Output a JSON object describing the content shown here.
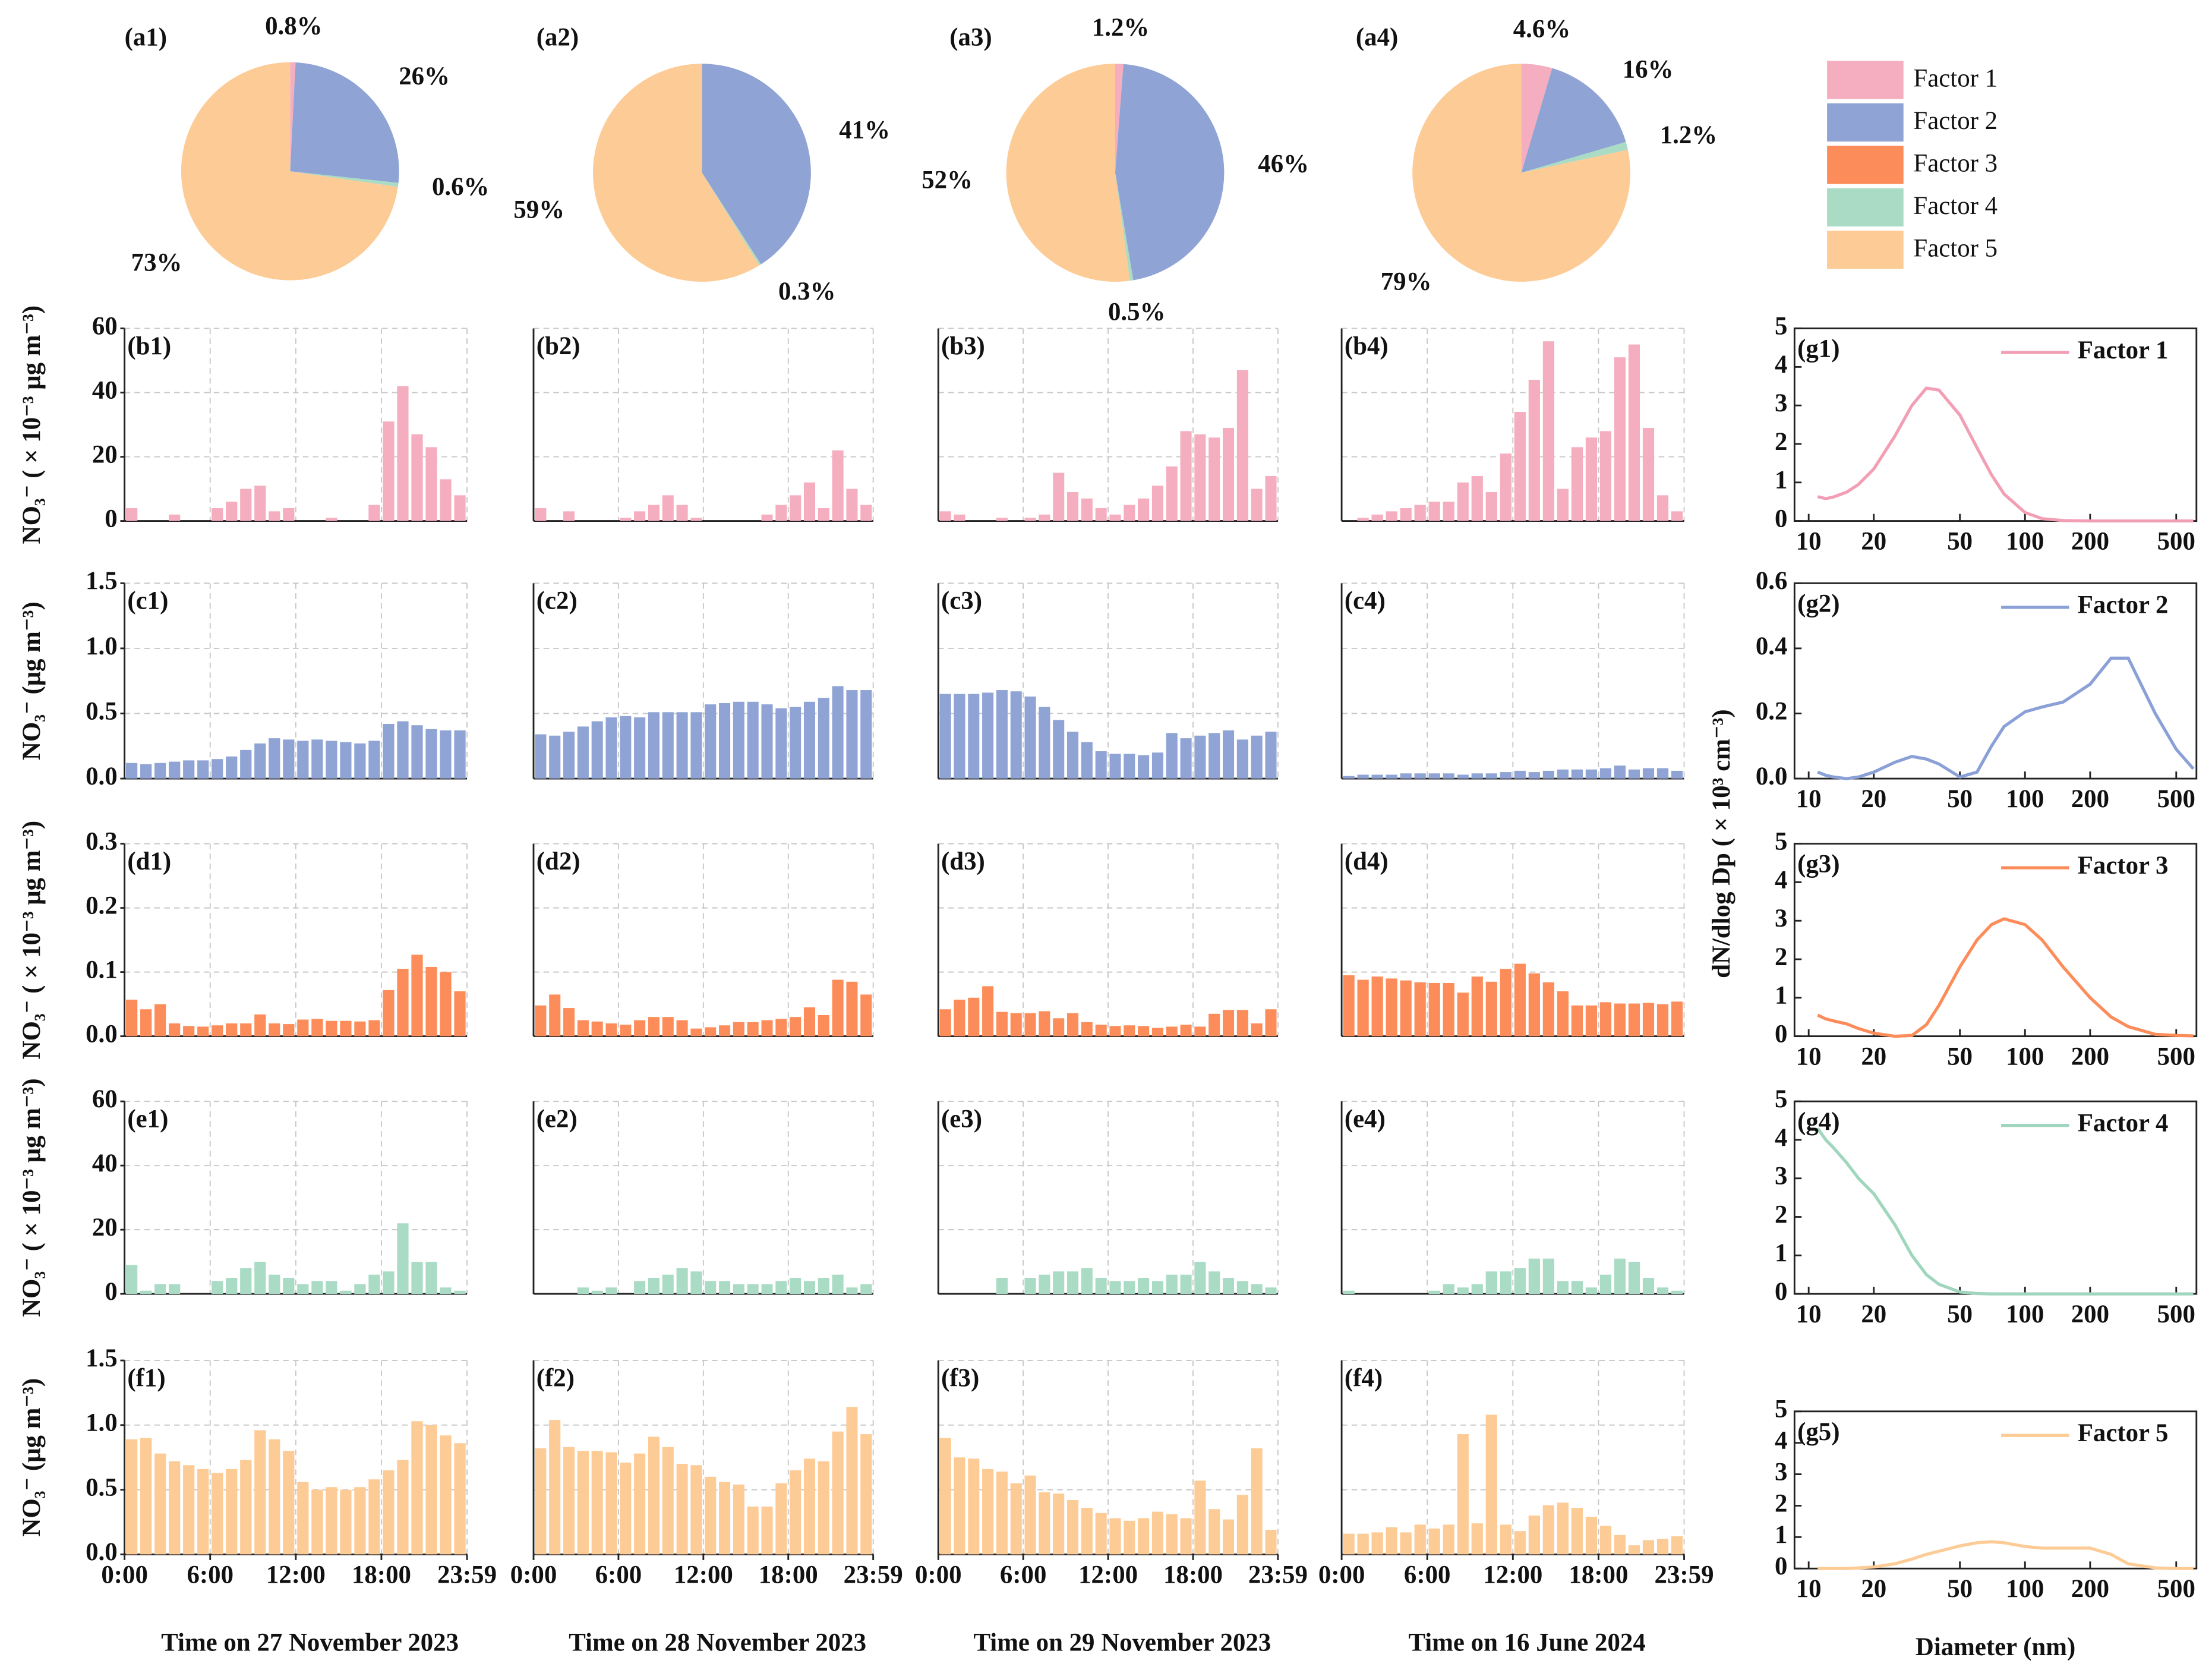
{
  "legend": [
    {
      "name": "Factor 1",
      "color": "#f5aebf"
    },
    {
      "name": "Factor 2",
      "color": "#8fa3d4"
    },
    {
      "name": "Factor 3",
      "color": "#fc8d5a"
    },
    {
      "name": "Factor 4",
      "color": "#a9dbc5"
    },
    {
      "name": "Factor 5",
      "color": "#fdcb95"
    }
  ],
  "chart_data": [
    {
      "type": "pie",
      "title": "(a1)",
      "values": [
        0.8,
        26,
        0.6,
        73
      ],
      "value_labels": [
        "0.8%",
        "26%",
        "0.6%",
        "73%"
      ],
      "colors": [
        "#f5aebf",
        "#8fa3d4",
        "#a9dbc5",
        "#fdcb95"
      ]
    },
    {
      "type": "pie",
      "title": "(a2)",
      "values": [
        41,
        0.3,
        59
      ],
      "value_labels": [
        "41%",
        "0.3%",
        "59%"
      ],
      "colors": [
        "#8fa3d4",
        "#a9dbc5",
        "#fdcb95"
      ]
    },
    {
      "type": "pie",
      "title": "(a3)",
      "values": [
        1.2,
        46,
        0.5,
        52
      ],
      "value_labels": [
        "1.2%",
        "46%",
        "0.5%",
        "52%"
      ],
      "colors": [
        "#f5aebf",
        "#8fa3d4",
        "#a9dbc5",
        "#fdcb95"
      ]
    },
    {
      "type": "pie",
      "title": "(a4)",
      "values": [
        4.6,
        16,
        1.2,
        79
      ],
      "value_labels": [
        "4.6%",
        "16%",
        "1.2%",
        "79%"
      ],
      "colors": [
        "#f5aebf",
        "#8fa3d4",
        "#a9dbc5",
        "#fdcb95"
      ]
    },
    {
      "type": "bar",
      "title": "(b1)",
      "ylabel": "NO₃⁻ ( × 10⁻³ μg m⁻³)",
      "ylim": [
        0,
        60
      ],
      "yticks": [
        0,
        20,
        40,
        60
      ],
      "grid": true,
      "color": "#f5aebf",
      "values": [
        4,
        0,
        0,
        2,
        0,
        0,
        4,
        6,
        10,
        11,
        3,
        4,
        0,
        0,
        1,
        0,
        0,
        5,
        31,
        42,
        27,
        23,
        13,
        8
      ]
    },
    {
      "type": "bar",
      "title": "(b2)",
      "grid": true,
      "color": "#f5aebf",
      "values": [
        4,
        0,
        3,
        0,
        0,
        0,
        1,
        3,
        5,
        8,
        5,
        1,
        0,
        0,
        0,
        0,
        2,
        5,
        8,
        12,
        4,
        22,
        10,
        5
      ]
    },
    {
      "type": "bar",
      "title": "(b3)",
      "grid": true,
      "color": "#f5aebf",
      "values": [
        3,
        2,
        0,
        0,
        1,
        0,
        1,
        2,
        15,
        9,
        7,
        4,
        2,
        5,
        7,
        11,
        17,
        28,
        27,
        26,
        29,
        47,
        10,
        14
      ]
    },
    {
      "type": "bar",
      "title": "(b4)",
      "grid": true,
      "color": "#f5aebf",
      "values": [
        0,
        1,
        2,
        3,
        4,
        5,
        6,
        6,
        12,
        14,
        9,
        21,
        34,
        44,
        56,
        10,
        23,
        26,
        28,
        51,
        55,
        29,
        8,
        3
      ]
    },
    {
      "type": "bar",
      "title": "(c1)",
      "ylabel": "NO₃⁻ (μg m⁻³)",
      "ylim": [
        0,
        1.5
      ],
      "yticks": [
        {
          "value": 0,
          "label": "0.0"
        },
        0.5,
        {
          "value": 1,
          "label": "1.0"
        },
        1.5
      ],
      "grid": true,
      "color": "#8fa3d4",
      "values": [
        0.12,
        0.11,
        0.12,
        0.13,
        0.14,
        0.14,
        0.15,
        0.17,
        0.22,
        0.27,
        0.31,
        0.3,
        0.29,
        0.3,
        0.29,
        0.28,
        0.27,
        0.29,
        0.42,
        0.44,
        0.41,
        0.38,
        0.37,
        0.37
      ]
    },
    {
      "type": "bar",
      "title": "(c2)",
      "grid": true,
      "color": "#8fa3d4",
      "values": [
        0.34,
        0.33,
        0.36,
        0.4,
        0.44,
        0.47,
        0.48,
        0.47,
        0.51,
        0.51,
        0.51,
        0.51,
        0.57,
        0.58,
        0.59,
        0.59,
        0.57,
        0.54,
        0.55,
        0.59,
        0.62,
        0.71,
        0.68,
        0.68
      ]
    },
    {
      "type": "bar",
      "title": "(c3)",
      "grid": true,
      "color": "#8fa3d4",
      "values": [
        0.65,
        0.65,
        0.65,
        0.66,
        0.68,
        0.67,
        0.63,
        0.55,
        0.45,
        0.36,
        0.28,
        0.21,
        0.19,
        0.19,
        0.18,
        0.2,
        0.35,
        0.31,
        0.33,
        0.35,
        0.37,
        0.3,
        0.33,
        0.36
      ]
    },
    {
      "type": "bar",
      "title": "(c4)",
      "grid": true,
      "color": "#8fa3d4",
      "values": [
        0.02,
        0.03,
        0.03,
        0.03,
        0.04,
        0.04,
        0.04,
        0.04,
        0.03,
        0.04,
        0.04,
        0.05,
        0.06,
        0.05,
        0.06,
        0.07,
        0.07,
        0.07,
        0.08,
        0.1,
        0.07,
        0.08,
        0.08,
        0.06
      ]
    },
    {
      "type": "bar",
      "title": "(d1)",
      "ylabel": "NO₃⁻ ( × 10⁻³ μg m⁻³)",
      "ylim": [
        0,
        0.3
      ],
      "yticks": [
        {
          "value": 0,
          "label": "0.0"
        },
        0.1,
        0.2,
        0.3
      ],
      "grid": true,
      "color": "#fc8d5a",
      "values": [
        0.057,
        0.042,
        0.05,
        0.02,
        0.016,
        0.015,
        0.017,
        0.02,
        0.02,
        0.034,
        0.02,
        0.019,
        0.026,
        0.027,
        0.024,
        0.024,
        0.023,
        0.025,
        0.072,
        0.105,
        0.127,
        0.108,
        0.1,
        0.07
      ]
    },
    {
      "type": "bar",
      "title": "(d2)",
      "grid": true,
      "color": "#fc8d5a",
      "values": [
        0.048,
        0.065,
        0.044,
        0.025,
        0.023,
        0.02,
        0.018,
        0.025,
        0.03,
        0.03,
        0.025,
        0.012,
        0.014,
        0.017,
        0.022,
        0.022,
        0.025,
        0.027,
        0.03,
        0.045,
        0.033,
        0.088,
        0.085,
        0.065
      ]
    },
    {
      "type": "bar",
      "title": "(d3)",
      "grid": true,
      "color": "#fc8d5a",
      "values": [
        0.042,
        0.057,
        0.06,
        0.078,
        0.038,
        0.036,
        0.036,
        0.039,
        0.028,
        0.036,
        0.022,
        0.018,
        0.016,
        0.017,
        0.016,
        0.013,
        0.015,
        0.018,
        0.015,
        0.035,
        0.041,
        0.041,
        0.02,
        0.042
      ]
    },
    {
      "type": "bar",
      "title": "(d4)",
      "grid": true,
      "color": "#fc8d5a",
      "values": [
        0.095,
        0.088,
        0.093,
        0.09,
        0.087,
        0.084,
        0.083,
        0.083,
        0.068,
        0.093,
        0.085,
        0.105,
        0.113,
        0.098,
        0.084,
        0.07,
        0.048,
        0.048,
        0.053,
        0.051,
        0.051,
        0.052,
        0.05,
        0.054
      ]
    },
    {
      "type": "bar",
      "title": "(e1)",
      "ylabel": "NO₃⁻ ( × 10⁻³ μg m⁻³)",
      "ylim": [
        0,
        60
      ],
      "yticks": [
        0,
        20,
        40,
        60
      ],
      "grid": true,
      "color": "#a9dbc5",
      "values": [
        9,
        1,
        3,
        3,
        0,
        0,
        4,
        5,
        8,
        10,
        6,
        5,
        3,
        4,
        4,
        1,
        3,
        6,
        7,
        22,
        10,
        10,
        2,
        1
      ]
    },
    {
      "type": "bar",
      "title": "(e2)",
      "grid": true,
      "color": "#a9dbc5",
      "values": [
        0,
        0,
        0,
        2,
        1,
        2,
        0,
        4,
        5,
        6,
        8,
        7,
        4,
        4,
        3,
        3,
        3,
        4,
        5,
        4,
        5,
        6,
        2,
        3
      ]
    },
    {
      "type": "bar",
      "title": "(e3)",
      "grid": true,
      "color": "#a9dbc5",
      "values": [
        0,
        0,
        0,
        0,
        5,
        0,
        5,
        6,
        7,
        7,
        8,
        5,
        4,
        4,
        5,
        4,
        6,
        6,
        10,
        7,
        5,
        4,
        3,
        2
      ]
    },
    {
      "type": "bar",
      "title": "(e4)",
      "grid": true,
      "color": "#a9dbc5",
      "values": [
        1,
        0,
        0,
        0,
        0,
        0,
        1,
        3,
        2,
        3,
        7,
        7,
        8,
        11,
        11,
        4,
        4,
        2,
        6,
        11,
        10,
        5,
        2,
        1
      ]
    },
    {
      "type": "bar",
      "title": "(f1)",
      "ylabel": "NO₃⁻ (μg m⁻³)",
      "xlabel": "Time on 27 November 2023",
      "ylim": [
        0,
        1.5
      ],
      "yticks": [
        {
          "value": 0,
          "label": "0.0"
        },
        0.5,
        {
          "value": 1,
          "label": "1.0"
        },
        1.5
      ],
      "xlim": [
        0,
        24
      ],
      "xticks": [
        {
          "value": 0,
          "label": "0:00"
        },
        {
          "value": 6,
          "label": "6:00"
        },
        {
          "value": 12,
          "label": "12:00"
        },
        {
          "value": 18,
          "label": "18:00"
        },
        {
          "value": 24,
          "label": "23:59"
        }
      ],
      "grid": true,
      "color": "#fdcb95",
      "values": [
        0.89,
        0.9,
        0.78,
        0.72,
        0.69,
        0.66,
        0.63,
        0.66,
        0.73,
        0.96,
        0.89,
        0.8,
        0.56,
        0.5,
        0.52,
        0.5,
        0.52,
        0.58,
        0.65,
        0.73,
        1.03,
        1.0,
        0.92,
        0.86
      ]
    },
    {
      "type": "bar",
      "title": "(f2)",
      "xlabel": "Time on 28 November 2023",
      "xlim": [
        0,
        24
      ],
      "xticks": [
        {
          "value": 0,
          "label": "0:00"
        },
        {
          "value": 6,
          "label": "6:00"
        },
        {
          "value": 12,
          "label": "12:00"
        },
        {
          "value": 18,
          "label": "18:00"
        },
        {
          "value": 24,
          "label": "23:59"
        }
      ],
      "grid": true,
      "color": "#fdcb95",
      "values": [
        0.82,
        1.04,
        0.83,
        0.8,
        0.8,
        0.79,
        0.71,
        0.78,
        0.91,
        0.83,
        0.7,
        0.69,
        0.6,
        0.56,
        0.54,
        0.37,
        0.37,
        0.55,
        0.65,
        0.74,
        0.72,
        0.95,
        1.14,
        0.93
      ]
    },
    {
      "type": "bar",
      "title": "(f3)",
      "xlabel": "Time on 29 November 2023",
      "xlim": [
        0,
        24
      ],
      "xticks": [
        {
          "value": 0,
          "label": "0:00"
        },
        {
          "value": 6,
          "label": "6:00"
        },
        {
          "value": 12,
          "label": "12:00"
        },
        {
          "value": 18,
          "label": "18:00"
        },
        {
          "value": 24,
          "label": "23:59"
        }
      ],
      "grid": true,
      "color": "#fdcb95",
      "values": [
        0.9,
        0.75,
        0.74,
        0.66,
        0.64,
        0.55,
        0.61,
        0.48,
        0.47,
        0.42,
        0.36,
        0.32,
        0.28,
        0.26,
        0.28,
        0.33,
        0.31,
        0.28,
        0.57,
        0.35,
        0.27,
        0.46,
        0.82,
        0.19
      ]
    },
    {
      "type": "bar",
      "title": "(f4)",
      "xlabel": "Time on 16 June 2024",
      "xlim": [
        0,
        24
      ],
      "xticks": [
        {
          "value": 0,
          "label": "0:00"
        },
        {
          "value": 6,
          "label": "6:00"
        },
        {
          "value": 12,
          "label": "12:00"
        },
        {
          "value": 18,
          "label": "18:00"
        },
        {
          "value": 24,
          "label": "23:59"
        }
      ],
      "grid": true,
      "color": "#fdcb95",
      "values": [
        0.16,
        0.16,
        0.17,
        0.21,
        0.17,
        0.23,
        0.2,
        0.23,
        0.93,
        0.24,
        1.08,
        0.23,
        0.18,
        0.3,
        0.38,
        0.4,
        0.36,
        0.29,
        0.22,
        0.15,
        0.07,
        0.11,
        0.12,
        0.14
      ]
    },
    {
      "type": "line",
      "title": "(g1)",
      "xlog": true,
      "xlim": [
        8.6,
        620
      ],
      "xticks": [
        10,
        20,
        50,
        100,
        200,
        500
      ],
      "ylim": [
        0,
        5
      ],
      "yticks": [
        0,
        1,
        2,
        3,
        4,
        5
      ],
      "x": [
        11,
        12,
        13,
        15,
        17,
        20,
        25,
        30,
        35,
        40,
        50,
        60,
        70,
        80,
        100,
        120,
        150,
        200,
        250,
        300,
        400,
        500,
        600
      ],
      "series": [
        {
          "name": "Factor 1",
          "color": "#f29fb5",
          "values": [
            0.63,
            0.58,
            0.62,
            0.75,
            0.95,
            1.35,
            2.2,
            3.0,
            3.45,
            3.4,
            2.75,
            1.9,
            1.2,
            0.7,
            0.22,
            0.06,
            0.01,
            0,
            0,
            0,
            0,
            0,
            0
          ]
        }
      ]
    },
    {
      "type": "line",
      "title": "(g2)",
      "xlog": true,
      "xlim": [
        8.6,
        620
      ],
      "xticks": [
        10,
        20,
        50,
        100,
        200,
        500
      ],
      "ylim": [
        0,
        0.6
      ],
      "yticks": [
        {
          "value": 0,
          "label": "0.0"
        },
        0.2,
        0.4,
        0.6
      ],
      "x": [
        11,
        12,
        13,
        15,
        17,
        20,
        25,
        30,
        35,
        40,
        50,
        60,
        70,
        80,
        100,
        120,
        150,
        200,
        250,
        300,
        400,
        500,
        600
      ],
      "series": [
        {
          "name": "Factor 2",
          "color": "#8ba0d6",
          "values": [
            0.02,
            0.01,
            0.005,
            0,
            0.005,
            0.02,
            0.05,
            0.068,
            0.06,
            0.045,
            0.005,
            0.02,
            0.1,
            0.16,
            0.205,
            0.22,
            0.235,
            0.29,
            0.37,
            0.37,
            0.2,
            0.09,
            0.03
          ]
        }
      ]
    },
    {
      "type": "line",
      "title": "(g3)",
      "ylabel": "dN/dlog Dp ( × 10³ cm⁻³)",
      "xlog": true,
      "xlim": [
        8.6,
        620
      ],
      "xticks": [
        10,
        20,
        50,
        100,
        200,
        500
      ],
      "ylim": [
        0,
        5
      ],
      "yticks": [
        0,
        1,
        2,
        3,
        4,
        5
      ],
      "x": [
        11,
        12,
        13,
        15,
        17,
        20,
        25,
        30,
        35,
        40,
        50,
        60,
        70,
        80,
        100,
        120,
        150,
        200,
        250,
        300,
        400,
        500,
        600
      ],
      "series": [
        {
          "name": "Factor 3",
          "color": "#fc8d5a",
          "values": [
            0.55,
            0.45,
            0.4,
            0.32,
            0.2,
            0.08,
            0,
            0.02,
            0.3,
            0.8,
            1.8,
            2.5,
            2.9,
            3.05,
            2.9,
            2.5,
            1.8,
            1.0,
            0.5,
            0.25,
            0.05,
            0.02,
            0.01
          ]
        }
      ]
    },
    {
      "type": "line",
      "title": "(g4)",
      "xlog": true,
      "xlim": [
        8.6,
        620
      ],
      "xticks": [
        10,
        20,
        50,
        100,
        200,
        500
      ],
      "ylim": [
        0,
        5
      ],
      "yticks": [
        0,
        1,
        2,
        3,
        4,
        5
      ],
      "x": [
        11,
        12,
        13,
        15,
        17,
        20,
        25,
        30,
        35,
        40,
        50,
        60,
        70,
        80,
        100,
        120,
        150,
        200,
        250,
        300,
        400,
        500,
        600
      ],
      "series": [
        {
          "name": "Factor 4",
          "color": "#9fd6bd",
          "values": [
            4.3,
            4.0,
            3.8,
            3.4,
            3.0,
            2.6,
            1.8,
            1.0,
            0.5,
            0.25,
            0.05,
            0.01,
            0,
            0,
            0,
            0,
            0,
            0,
            0,
            0,
            0,
            0,
            0
          ]
        }
      ]
    },
    {
      "type": "line",
      "title": "(g5)",
      "xlabel": "Diameter (nm)",
      "xlog": true,
      "xlim": [
        8.6,
        620
      ],
      "xticks": [
        10,
        20,
        50,
        100,
        200,
        500
      ],
      "ylim": [
        0,
        5
      ],
      "yticks": [
        0,
        1,
        2,
        3,
        4,
        5
      ],
      "x": [
        11,
        12,
        13,
        15,
        17,
        20,
        25,
        30,
        35,
        40,
        50,
        60,
        70,
        80,
        100,
        120,
        150,
        200,
        250,
        300,
        400,
        500,
        600
      ],
      "series": [
        {
          "name": "Factor 5",
          "color": "#fdcb95",
          "values": [
            0,
            0,
            0,
            0,
            0.02,
            0.05,
            0.15,
            0.3,
            0.45,
            0.55,
            0.72,
            0.82,
            0.85,
            0.82,
            0.7,
            0.65,
            0.65,
            0.65,
            0.45,
            0.15,
            0.02,
            0,
            0
          ]
        }
      ]
    }
  ]
}
